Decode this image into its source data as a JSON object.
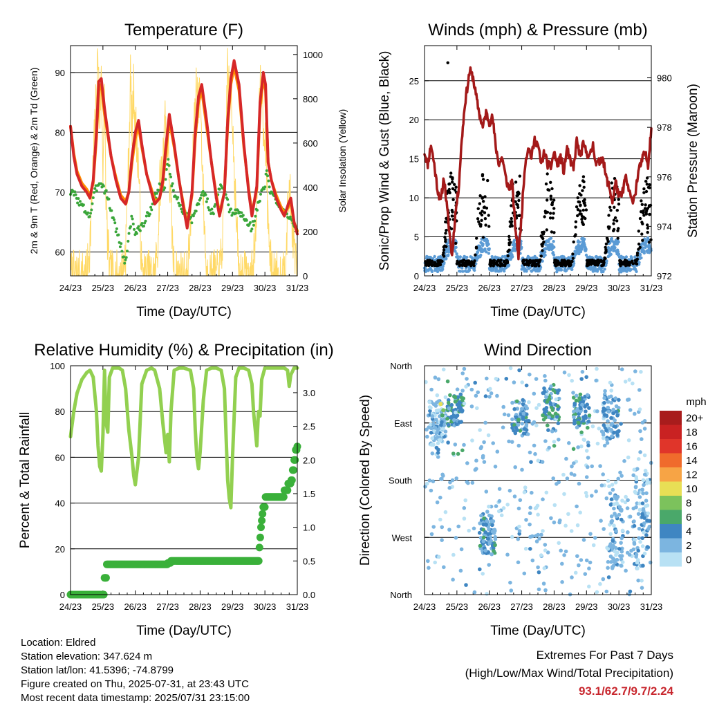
{
  "chart_data": [
    {
      "type": "line",
      "title": "Temperature (F)",
      "xlabel": "Time (Day/UTC)",
      "ylabel_left": "2m & 9m T (Red, Orange) & 2m Td (Green)",
      "ylabel_right": "Solar Insolation (Yellow)",
      "x_ticks": [
        "24/23",
        "25/23",
        "26/23",
        "27/23",
        "28/23",
        "29/23",
        "30/23",
        "31/23"
      ],
      "xlim": [
        0,
        7
      ],
      "ylim_left": [
        56,
        94.5
      ],
      "yticks_left": [
        60,
        70,
        80,
        90
      ],
      "ylim_right": [
        0,
        1040
      ],
      "yticks_right": [
        0,
        200,
        400,
        600,
        800,
        1000
      ],
      "series": [
        {
          "color": "#d62728",
          "axis": "left",
          "x": [
            0,
            0.1,
            0.2,
            0.35,
            0.5,
            0.6,
            0.7,
            0.8,
            0.87,
            0.95,
            1.05,
            1.15,
            1.25,
            1.4,
            1.55,
            1.7,
            1.8,
            1.9,
            2.0,
            2.1,
            2.2,
            2.35,
            2.5,
            2.6,
            2.75,
            2.85,
            2.95,
            3.05,
            3.2,
            3.35,
            3.5,
            3.6,
            3.75,
            3.85,
            3.95,
            4.05,
            4.2,
            4.35,
            4.5,
            4.6,
            4.75,
            4.85,
            4.95,
            5.05,
            5.2,
            5.35,
            5.5,
            5.6,
            5.75,
            5.85,
            5.95,
            6.02,
            6.1,
            6.2,
            6.35,
            6.5,
            6.6,
            6.72,
            6.8,
            6.9,
            7.0
          ],
          "y": [
            81,
            76,
            73,
            71,
            70,
            69,
            72,
            80,
            88.5,
            89,
            84,
            80,
            76,
            72,
            69,
            68,
            70,
            76,
            80,
            82,
            78,
            73,
            70,
            68,
            69,
            72,
            78,
            83,
            78,
            72,
            67,
            64,
            70,
            80,
            86,
            88,
            82,
            75,
            69,
            66,
            70,
            82,
            89,
            92,
            88,
            78,
            70,
            66,
            71,
            85,
            90,
            88,
            75,
            72,
            69,
            67,
            66,
            68,
            69,
            65,
            63
          ]
        },
        {
          "color": "#ff8c00",
          "axis": "left",
          "x": [
            0,
            0.1,
            0.2,
            0.35,
            0.5,
            0.6,
            0.7,
            0.8,
            0.87,
            0.95,
            1.05,
            1.15,
            1.25,
            1.4,
            1.55,
            1.7,
            1.8,
            1.9,
            2.0,
            2.1,
            2.2,
            2.35,
            2.5,
            2.6,
            2.75,
            2.85,
            2.95,
            3.05,
            3.2,
            3.35,
            3.5,
            3.6,
            3.75,
            3.85,
            3.95,
            4.05,
            4.2,
            4.35,
            4.5,
            4.6,
            4.75,
            4.85,
            4.95,
            5.05,
            5.2,
            5.35,
            5.5,
            5.6,
            5.75,
            5.85,
            5.95,
            6.02,
            6.1,
            6.2,
            6.35,
            6.5,
            6.6,
            6.72,
            6.8,
            6.9,
            7.0
          ],
          "y": [
            81,
            76.5,
            73.5,
            71.5,
            70.5,
            69.5,
            71.5,
            79,
            87,
            88,
            83,
            79.5,
            76,
            72.5,
            69.5,
            68.5,
            70,
            75,
            79,
            81,
            77.5,
            73,
            70.5,
            68.5,
            69,
            71.5,
            77,
            82,
            77.5,
            72,
            67.5,
            64.5,
            69.5,
            79,
            85,
            87,
            81,
            75,
            69.5,
            66.5,
            70,
            81,
            88,
            91,
            87,
            77.5,
            70.5,
            66.5,
            70.5,
            84,
            89,
            87,
            75,
            72,
            69.5,
            67.5,
            66.5,
            67.5,
            68.5,
            65,
            63.5
          ]
        },
        {
          "color": "#3aa63a",
          "axis": "left",
          "x": [
            0,
            0.15,
            0.3,
            0.45,
            0.6,
            0.75,
            0.9,
            1.0,
            1.1,
            1.2,
            1.35,
            1.5,
            1.6,
            1.7,
            1.8,
            1.9,
            2.0,
            2.15,
            2.3,
            2.45,
            2.6,
            2.75,
            2.9,
            3.0,
            3.1,
            3.25,
            3.4,
            3.55,
            3.7,
            3.85,
            4.0,
            4.1,
            4.25,
            4.4,
            4.55,
            4.7,
            4.85,
            5.0,
            5.15,
            5.3,
            5.45,
            5.6,
            5.75,
            5.9,
            6.0,
            6.05,
            6.15,
            6.3,
            6.45,
            6.6,
            6.75,
            6.9,
            7.0
          ],
          "y": [
            70,
            69.5,
            68,
            67,
            66,
            70,
            72,
            71,
            70,
            68,
            65,
            62,
            60,
            58,
            63,
            66,
            63,
            64,
            65,
            67,
            69,
            71,
            70,
            76,
            72,
            69,
            68,
            66,
            65,
            67,
            69,
            70,
            68,
            66,
            70,
            71,
            68,
            66,
            67,
            66,
            65,
            64,
            67,
            70,
            71,
            74,
            70,
            69,
            68,
            67,
            66,
            64,
            63
          ]
        },
        {
          "color": "#ffd966",
          "axis": "right",
          "x": [
            0,
            0.3,
            0.5,
            0.6,
            0.7,
            0.8,
            0.85,
            0.9,
            0.95,
            1.0,
            1.05,
            1.1,
            1.2,
            1.4,
            1.6,
            1.7,
            1.8,
            1.85,
            1.9,
            1.95,
            2.0,
            2.1,
            2.2,
            2.4,
            2.6,
            2.7,
            2.75,
            2.85,
            2.9,
            2.95,
            3.0,
            3.1,
            3.2,
            3.4,
            3.6,
            3.7,
            3.8,
            3.85,
            3.9,
            3.95,
            4.0,
            4.1,
            4.2,
            4.4,
            4.6,
            4.7,
            4.8,
            4.85,
            4.9,
            4.95,
            5.0,
            5.1,
            5.2,
            5.4,
            5.6,
            5.7,
            5.8,
            5.85,
            5.9,
            5.95,
            6.0,
            6.1,
            6.2,
            6.4,
            6.55,
            6.65,
            6.75,
            6.8,
            6.9,
            7.0
          ],
          "y": [
            0,
            0,
            0,
            150,
            500,
            820,
            1000,
            700,
            900,
            500,
            800,
            300,
            0,
            0,
            0,
            120,
            550,
            900,
            650,
            850,
            700,
            500,
            0,
            0,
            0,
            150,
            400,
            500,
            750,
            650,
            600,
            300,
            0,
            0,
            0,
            200,
            600,
            800,
            900,
            750,
            850,
            350,
            0,
            0,
            0,
            180,
            650,
            950,
            800,
            900,
            700,
            300,
            0,
            0,
            0,
            160,
            600,
            850,
            900,
            700,
            650,
            250,
            0,
            0,
            0,
            120,
            400,
            300,
            150,
            0
          ]
        }
      ]
    },
    {
      "type": "scatter",
      "title": "Winds (mph) & Pressure (mb)",
      "xlabel": "Time (Day/UTC)",
      "ylabel_left": "Sonic/Prop Wind & Gust (Blue, Black)",
      "ylabel_right": "Station Pressure (Maroon)",
      "x_ticks": [
        "24/23",
        "25/23",
        "26/23",
        "27/23",
        "28/23",
        "29/23",
        "30/23",
        "31/23"
      ],
      "xlim": [
        0,
        7
      ],
      "ylim_left": [
        0,
        29.5
      ],
      "yticks_left": [
        0,
        5,
        10,
        15,
        20,
        25
      ],
      "ylim_right": [
        972,
        981.3
      ],
      "yticks_right": [
        972,
        974,
        976,
        978,
        980
      ],
      "series": [
        {
          "name": "Pressure",
          "color": "#a31919",
          "axis": "right",
          "type": "line",
          "x": [
            0,
            0.1,
            0.2,
            0.3,
            0.4,
            0.5,
            0.6,
            0.75,
            0.85,
            0.95,
            1.05,
            1.15,
            1.25,
            1.4,
            1.5,
            1.6,
            1.7,
            1.8,
            1.9,
            2.0,
            2.1,
            2.2,
            2.3,
            2.4,
            2.5,
            2.6,
            2.7,
            2.8,
            2.9,
            3.0,
            3.1,
            3.2,
            3.3,
            3.4,
            3.5,
            3.6,
            3.7,
            3.8,
            3.9,
            4.0,
            4.1,
            4.2,
            4.3,
            4.4,
            4.5,
            4.6,
            4.7,
            4.8,
            4.9,
            5.0,
            5.1,
            5.2,
            5.3,
            5.4,
            5.5,
            5.6,
            5.7,
            5.8,
            5.9,
            6.0,
            6.1,
            6.2,
            6.3,
            6.4,
            6.5,
            6.6,
            6.7,
            6.8,
            6.9,
            7.0
          ],
          "y": [
            977,
            976.5,
            977.3,
            976.5,
            975.5,
            975,
            976,
            974,
            972.8,
            974.5,
            975.5,
            977.5,
            979,
            980.3,
            980,
            979.2,
            978.5,
            978,
            978.6,
            978.2,
            978.4,
            977.2,
            976.5,
            976.8,
            976,
            975.5,
            975.8,
            974,
            972.8,
            974.5,
            976.5,
            977.2,
            976.8,
            977.5,
            977.3,
            976.5,
            977,
            976.5,
            976.4,
            977,
            976.5,
            976.8,
            976.2,
            977.2,
            976.6,
            976.3,
            977.5,
            976.8,
            977.3,
            977,
            976.8,
            977.3,
            976.5,
            976.6,
            976.8,
            976,
            975.6,
            975,
            975.8,
            975.2,
            975.3,
            976,
            975.5,
            975,
            975.3,
            976.2,
            976.6,
            977,
            976.5,
            978
          ]
        }
      ]
    },
    {
      "type": "line",
      "title": "Relative Humidity (%) & Precipitation (in)",
      "xlabel": "Time (Day/UTC)",
      "ylabel_left": "Percent & Total Rainfall",
      "x_ticks": [
        "24/23",
        "25/23",
        "26/23",
        "27/23",
        "28/23",
        "29/23",
        "30/23",
        "31/23"
      ],
      "xlim": [
        0,
        7
      ],
      "ylim_left": [
        0,
        100
      ],
      "yticks_left": [
        0,
        20,
        40,
        60,
        80,
        100
      ],
      "ylim_right": [
        0,
        3.4
      ],
      "yticks_right": [
        0.0,
        0.5,
        1.0,
        1.5,
        2.0,
        2.5,
        3.0
      ],
      "series": [
        {
          "name": "RH",
          "color": "#92d050",
          "axis": "left",
          "x": [
            0,
            0.1,
            0.2,
            0.35,
            0.5,
            0.6,
            0.7,
            0.8,
            0.85,
            0.9,
            0.95,
            1.0,
            1.05,
            1.1,
            1.15,
            1.2,
            1.3,
            1.5,
            1.6,
            1.7,
            1.8,
            1.9,
            1.95,
            2.0,
            2.1,
            2.2,
            2.35,
            2.5,
            2.6,
            2.75,
            2.85,
            2.95,
            3.0,
            3.05,
            3.1,
            3.2,
            3.35,
            3.5,
            3.7,
            3.8,
            3.85,
            3.9,
            3.95,
            4.0,
            4.1,
            4.2,
            4.35,
            4.5,
            4.65,
            4.75,
            4.8,
            4.85,
            4.9,
            4.95,
            5.0,
            5.1,
            5.2,
            5.35,
            5.5,
            5.6,
            5.65,
            5.75,
            5.8,
            5.85,
            5.9,
            6.0,
            6.2,
            6.4,
            6.6,
            6.7,
            6.75,
            6.8,
            6.9,
            7.0
          ],
          "y": [
            69,
            80,
            88,
            94,
            97,
            98,
            95,
            80,
            65,
            56,
            54,
            70,
            98,
            75,
            71,
            95,
            99,
            99,
            98,
            90,
            72,
            60,
            52,
            48,
            60,
            92,
            98,
            99,
            98,
            90,
            75,
            62,
            70,
            58,
            80,
            98,
            99,
            99,
            98,
            90,
            72,
            60,
            55,
            62,
            85,
            98,
            99,
            99,
            98,
            90,
            70,
            50,
            42,
            38,
            60,
            95,
            99,
            99,
            98,
            92,
            80,
            65,
            80,
            78,
            94,
            99,
            99,
            99,
            99,
            98,
            91,
            96,
            99,
            99
          ]
        },
        {
          "name": "Rain",
          "color": "#3ab03a",
          "axis": "right",
          "x": [
            0,
            0.5,
            1.0,
            1.05,
            1.1,
            1.15,
            1.3,
            2.0,
            3.0,
            3.1,
            3.5,
            4.0,
            4.5,
            5.0,
            5.5,
            5.8,
            5.82,
            5.85,
            5.88,
            5.9,
            5.92,
            5.95,
            6.0,
            6.2,
            6.4,
            6.5,
            6.6,
            6.7,
            6.8,
            6.85,
            6.9,
            6.95,
            7.0
          ],
          "y": [
            0,
            0,
            0,
            0.25,
            0.45,
            0.45,
            0.45,
            0.45,
            0.47,
            0.5,
            0.5,
            0.5,
            0.5,
            0.5,
            0.5,
            0.5,
            0.7,
            0.85,
            1.0,
            1.1,
            1.2,
            1.3,
            1.45,
            1.45,
            1.45,
            1.45,
            1.55,
            1.65,
            1.7,
            1.85,
            2.0,
            2.15,
            2.2
          ]
        }
      ]
    },
    {
      "type": "scatter",
      "title": "Wind Direction",
      "xlabel": "Time (Day/UTC)",
      "ylabel_left": "Direction (Colored By Speed)",
      "x_ticks": [
        "24/23",
        "25/23",
        "26/23",
        "27/23",
        "28/23",
        "29/23",
        "30/23",
        "31/23"
      ],
      "xlim": [
        0,
        7
      ],
      "y_ticks": [
        "North",
        "West",
        "South",
        "East",
        "North"
      ],
      "legend_title": "mph",
      "legend_labels": [
        "20+",
        "18",
        "16",
        "14",
        "12",
        "10",
        "8",
        "6",
        "4",
        "2",
        "0"
      ],
      "legend_colors": [
        "#a81c1c",
        "#c92222",
        "#e0352a",
        "#f06b2c",
        "#f7a445",
        "#e8df55",
        "#7cc25c",
        "#4aa86a",
        "#3f86c2",
        "#7cb5e0",
        "#b8e1f4"
      ]
    }
  ],
  "info": {
    "location": "Location: Eldred",
    "elevation": "Station elevation: 347.624 m",
    "latlon": "Station lat/lon: 41.5396; -74.8799",
    "created": "Figure created on Thu, 2025-07-31, at 23:43 UTC",
    "recent": "Most recent data timestamp: 2025/07/31 23:15:00"
  },
  "extremes": {
    "title": "Extremes For Past 7 Days",
    "subtitle": "(High/Low/Max Wind/Total Precipitation)",
    "values": "93.1/62.7/9.7/2.24",
    "color": "#c8272e"
  }
}
